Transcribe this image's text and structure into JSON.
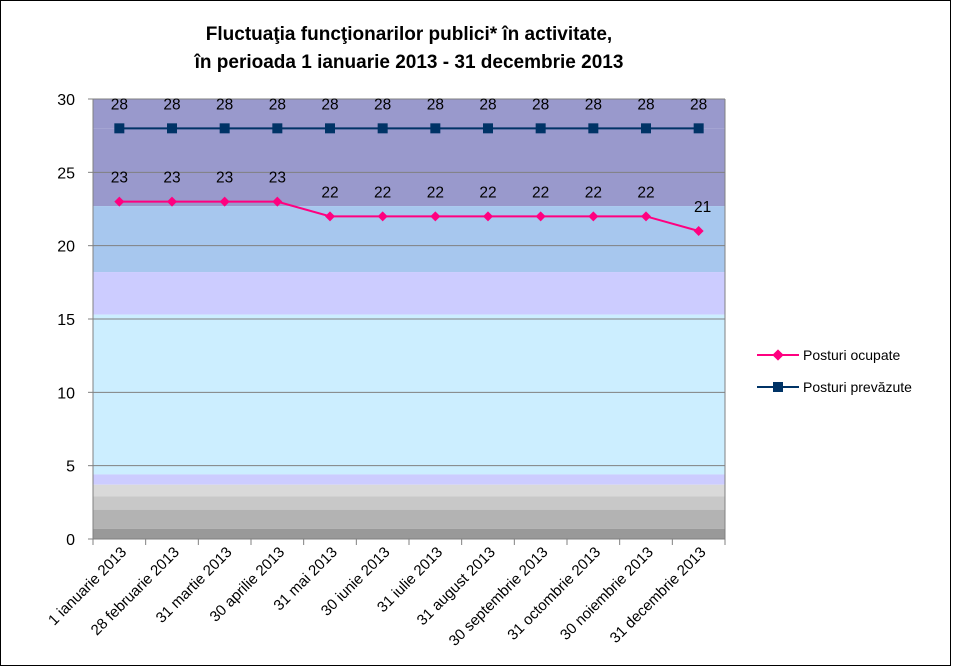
{
  "chart_data": {
    "type": "line",
    "title_line1": "Fluctuaţia funcţionarilor publici* în activitate,",
    "title_line2": "în perioada 1 ianuarie 2013 - 31 decembrie 2013",
    "categories": [
      "1 ianuarie 2013",
      "28 februarie 2013",
      "31 martie 2013",
      "30 aprilie 2013",
      "31 mai 2013",
      "30 iunie 2013",
      "31 iulie 2013",
      "31 august 2013",
      "30 septembrie 2013",
      "31 octombrie 2013",
      "30 noiembrie 2013",
      "31 decembrie 2013"
    ],
    "series": [
      {
        "name": "Posturi ocupate",
        "values": [
          23,
          23,
          23,
          23,
          22,
          22,
          22,
          22,
          22,
          22,
          22,
          21
        ],
        "color": "#ff0080",
        "marker": "diamond"
      },
      {
        "name": "Posturi prevăzute",
        "values": [
          28,
          28,
          28,
          28,
          28,
          28,
          28,
          28,
          28,
          28,
          28,
          28
        ],
        "color": "#003366",
        "marker": "square"
      }
    ],
    "ylim": [
      0,
      30
    ],
    "yticks": [
      "0",
      "5",
      "10",
      "15",
      "20",
      "25",
      "30"
    ],
    "grid": true,
    "legend": "right"
  }
}
